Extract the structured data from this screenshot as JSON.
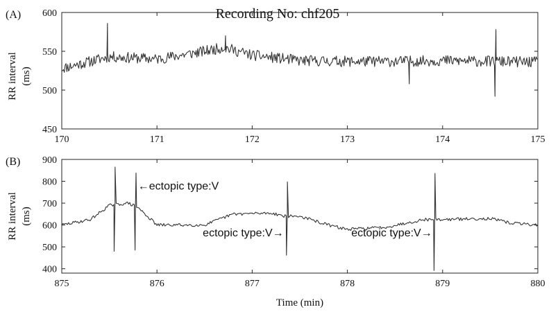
{
  "chart_data": [
    {
      "type": "line",
      "panel_label": "(A)",
      "title": "Recording No: chf205",
      "ylabel_line1": "RR interval",
      "ylabel_line2": "(ms)",
      "xlabel": "",
      "xlim": [
        170,
        175
      ],
      "ylim": [
        450,
        600
      ],
      "xticks": [
        170,
        171,
        172,
        173,
        174,
        175
      ],
      "yticks": [
        450,
        500,
        550,
        600
      ],
      "grid": false,
      "color": "#333333",
      "baseline": [
        [
          170.0,
          528
        ],
        [
          170.5,
          543
        ],
        [
          171.0,
          540
        ],
        [
          171.5,
          550
        ],
        [
          171.7,
          555
        ],
        [
          172.0,
          545
        ],
        [
          172.5,
          538
        ],
        [
          173.0,
          537
        ],
        [
          173.5,
          537
        ],
        [
          174.0,
          538
        ],
        [
          174.5,
          537
        ],
        [
          175.0,
          536
        ]
      ],
      "noise_amplitude": 7,
      "spikes": [
        {
          "x": 170.48,
          "y": 586
        },
        {
          "x": 171.72,
          "y": 570
        },
        {
          "x": 173.65,
          "y": 508
        },
        {
          "x": 174.55,
          "y": 492
        },
        {
          "x": 174.56,
          "y": 578
        }
      ]
    },
    {
      "type": "line",
      "panel_label": "(B)",
      "title": "",
      "ylabel_line1": "RR interval",
      "ylabel_line2": "(ms)",
      "xlabel": "Time (min)",
      "xlim": [
        875,
        880
      ],
      "ylim": [
        380,
        900
      ],
      "xticks": [
        875,
        876,
        877,
        878,
        879,
        880
      ],
      "yticks": [
        400,
        500,
        600,
        700,
        800,
        900
      ],
      "grid": false,
      "color": "#333333",
      "baseline": [
        [
          875.0,
          600
        ],
        [
          875.3,
          625
        ],
        [
          875.5,
          690
        ],
        [
          875.7,
          700
        ],
        [
          875.8,
          680
        ],
        [
          876.0,
          600
        ],
        [
          876.5,
          600
        ],
        [
          876.8,
          650
        ],
        [
          877.2,
          655
        ],
        [
          877.35,
          640
        ],
        [
          877.5,
          640
        ],
        [
          877.8,
          600
        ],
        [
          878.0,
          580
        ],
        [
          878.4,
          590
        ],
        [
          878.8,
          625
        ],
        [
          879.0,
          625
        ],
        [
          879.5,
          630
        ],
        [
          879.7,
          610
        ],
        [
          880.0,
          600
        ]
      ],
      "noise_amplitude": 7,
      "spikes": [
        {
          "x": 875.55,
          "y": 480
        },
        {
          "x": 875.56,
          "y": 865
        },
        {
          "x": 875.77,
          "y": 485
        },
        {
          "x": 875.78,
          "y": 838
        },
        {
          "x": 877.36,
          "y": 462
        },
        {
          "x": 877.37,
          "y": 797
        },
        {
          "x": 878.91,
          "y": 392
        },
        {
          "x": 878.92,
          "y": 836
        }
      ],
      "annotations": [
        {
          "text": "←ectopic type:V",
          "x": 875.8,
          "y": 762,
          "anchor": "start"
        },
        {
          "text": "ectopic type:V→",
          "x": 877.33,
          "y": 548,
          "anchor": "end"
        },
        {
          "text": "ectopic type:V→",
          "x": 878.89,
          "y": 548,
          "anchor": "end"
        }
      ]
    }
  ]
}
